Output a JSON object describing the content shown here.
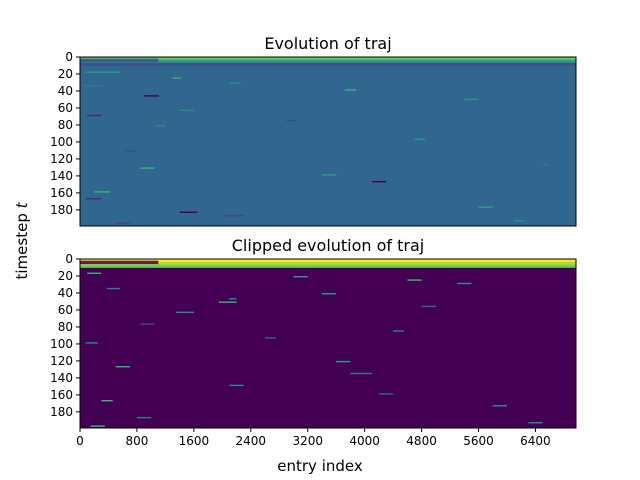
{
  "chart_data": [
    {
      "type": "heatmap",
      "title": "Evolution of traj",
      "ylabel": "timestep $t$",
      "xlabel": "",
      "x_range": [
        0,
        6970
      ],
      "y_range": [
        0,
        199
      ],
      "y_ticks": [
        0,
        20,
        40,
        60,
        80,
        100,
        120,
        140,
        160,
        180
      ],
      "x_ticks": [],
      "colormap": "viridis",
      "background_color": "#31668e",
      "top_band": {
        "timesteps": [
          0,
          10
        ],
        "colors": [
          "#5ec962",
          "#2a9d8f",
          "#3b528b"
        ]
      },
      "streaks": [
        {
          "t": 17,
          "x0": 80,
          "x1": 560,
          "color": "#1f9e89"
        },
        {
          "t": 24,
          "x0": 1300,
          "x1": 1420,
          "color": "#35b779"
        },
        {
          "t": 30,
          "x0": 2100,
          "x1": 2250,
          "color": "#21918c"
        },
        {
          "t": 33,
          "x0": 60,
          "x1": 320,
          "color": "#26828e"
        },
        {
          "t": 38,
          "x0": 3720,
          "x1": 3880,
          "color": "#35b779"
        },
        {
          "t": 45,
          "x0": 900,
          "x1": 1110,
          "color": "#440154"
        },
        {
          "t": 49,
          "x0": 5400,
          "x1": 5600,
          "color": "#1f9e89"
        },
        {
          "t": 62,
          "x0": 1400,
          "x1": 1600,
          "color": "#21918c"
        },
        {
          "t": 68,
          "x0": 100,
          "x1": 300,
          "color": "#482878"
        },
        {
          "t": 74,
          "x0": 2900,
          "x1": 3050,
          "color": "#3e4989"
        },
        {
          "t": 80,
          "x0": 1050,
          "x1": 1200,
          "color": "#21918c"
        },
        {
          "t": 96,
          "x0": 4700,
          "x1": 4850,
          "color": "#1f9e89"
        },
        {
          "t": 110,
          "x0": 650,
          "x1": 780,
          "color": "#3e4989"
        },
        {
          "t": 126,
          "x0": 6500,
          "x1": 6600,
          "color": "#26828e"
        },
        {
          "t": 130,
          "x0": 850,
          "x1": 1050,
          "color": "#35b779"
        },
        {
          "t": 138,
          "x0": 3400,
          "x1": 3600,
          "color": "#2a9d8f"
        },
        {
          "t": 146,
          "x0": 4100,
          "x1": 4300,
          "color": "#440154"
        },
        {
          "t": 158,
          "x0": 200,
          "x1": 420,
          "color": "#35b779"
        },
        {
          "t": 166,
          "x0": 80,
          "x1": 300,
          "color": "#482878"
        },
        {
          "t": 176,
          "x0": 5600,
          "x1": 5800,
          "color": "#2a9d8f"
        },
        {
          "t": 182,
          "x0": 1400,
          "x1": 1650,
          "color": "#440154"
        },
        {
          "t": 186,
          "x0": 2000,
          "x1": 2300,
          "color": "#3e4989"
        },
        {
          "t": 192,
          "x0": 6100,
          "x1": 6250,
          "color": "#21918c"
        },
        {
          "t": 195,
          "x0": 500,
          "x1": 700,
          "color": "#3e4989"
        }
      ]
    },
    {
      "type": "heatmap",
      "title": "Clipped evolution of traj",
      "ylabel": "timestep $t$",
      "xlabel": "entry index",
      "x_range": [
        0,
        6970
      ],
      "y_range": [
        0,
        199
      ],
      "y_ticks": [
        0,
        20,
        40,
        60,
        80,
        100,
        120,
        140,
        160,
        180
      ],
      "x_ticks": [
        0,
        800,
        1600,
        2400,
        3200,
        4000,
        4800,
        5600,
        6400
      ],
      "colormap": "viridis",
      "background_color": "#440154",
      "top_band": {
        "timesteps": [
          0,
          10
        ],
        "colors": [
          "#fde725",
          "#b5de2b",
          "#6ece58"
        ]
      },
      "streaks": [
        {
          "t": 16,
          "x0": 100,
          "x1": 300,
          "color": "#35b779"
        },
        {
          "t": 20,
          "x0": 3000,
          "x1": 3200,
          "color": "#2a9d8f"
        },
        {
          "t": 24,
          "x0": 4600,
          "x1": 4800,
          "color": "#35b779"
        },
        {
          "t": 28,
          "x0": 5300,
          "x1": 5500,
          "color": "#21918c"
        },
        {
          "t": 34,
          "x0": 380,
          "x1": 560,
          "color": "#26828e"
        },
        {
          "t": 40,
          "x0": 3400,
          "x1": 3600,
          "color": "#1f9e89"
        },
        {
          "t": 46,
          "x0": 2100,
          "x1": 2200,
          "color": "#21918c"
        },
        {
          "t": 50,
          "x0": 1950,
          "x1": 2200,
          "color": "#35b779"
        },
        {
          "t": 55,
          "x0": 4800,
          "x1": 5000,
          "color": "#31688e"
        },
        {
          "t": 62,
          "x0": 1350,
          "x1": 1600,
          "color": "#21918c"
        },
        {
          "t": 76,
          "x0": 850,
          "x1": 1050,
          "color": "#3e4989"
        },
        {
          "t": 84,
          "x0": 4400,
          "x1": 4550,
          "color": "#26828e"
        },
        {
          "t": 92,
          "x0": 2600,
          "x1": 2750,
          "color": "#31688e"
        },
        {
          "t": 98,
          "x0": 80,
          "x1": 250,
          "color": "#21918c"
        },
        {
          "t": 120,
          "x0": 3600,
          "x1": 3800,
          "color": "#1f9e89"
        },
        {
          "t": 126,
          "x0": 500,
          "x1": 700,
          "color": "#35b779"
        },
        {
          "t": 134,
          "x0": 3800,
          "x1": 4100,
          "color": "#26828e"
        },
        {
          "t": 148,
          "x0": 2100,
          "x1": 2300,
          "color": "#21918c"
        },
        {
          "t": 158,
          "x0": 4200,
          "x1": 4400,
          "color": "#31688e"
        },
        {
          "t": 166,
          "x0": 300,
          "x1": 460,
          "color": "#35b779"
        },
        {
          "t": 172,
          "x0": 5800,
          "x1": 6000,
          "color": "#21918c"
        },
        {
          "t": 186,
          "x0": 800,
          "x1": 1000,
          "color": "#26828e"
        },
        {
          "t": 192,
          "x0": 6300,
          "x1": 6500,
          "color": "#21918c"
        },
        {
          "t": 196,
          "x0": 150,
          "x1": 350,
          "color": "#35b779"
        }
      ]
    }
  ]
}
